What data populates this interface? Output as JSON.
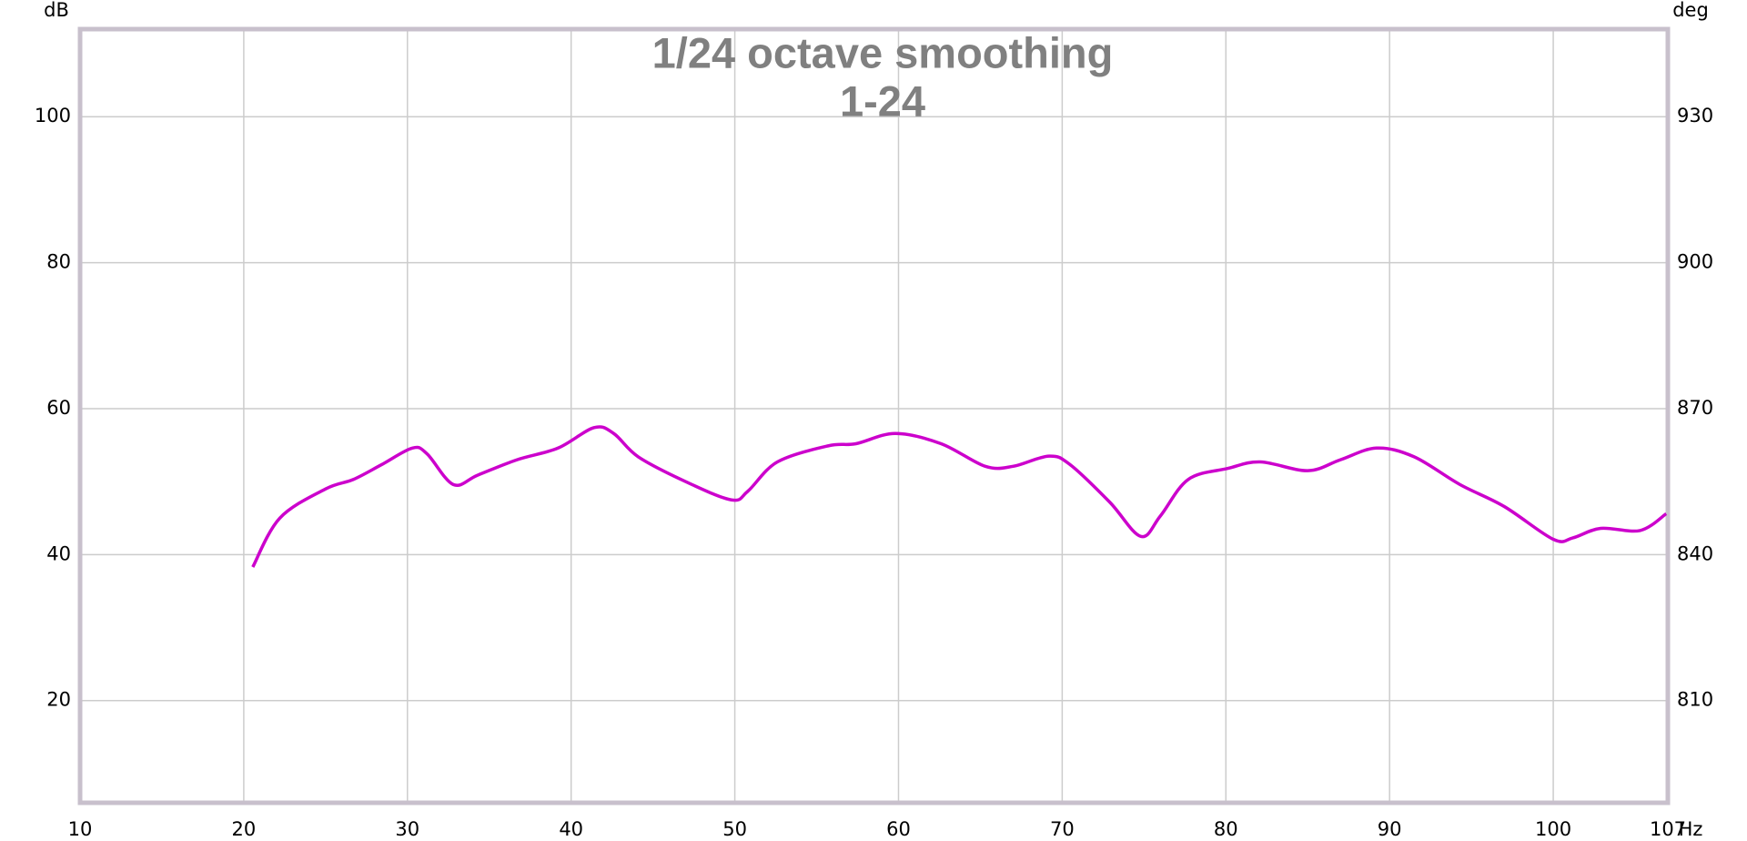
{
  "chart_data": {
    "type": "line",
    "title": "1/24 octave smoothing",
    "subtitle": "1-24",
    "x_label": "Hz",
    "y_label": "dB",
    "y2_label": "deg",
    "x": [
      20.55,
      22.2,
      25.0,
      26.7,
      28.4,
      30.3,
      31.2,
      32.8,
      34.3,
      36.7,
      39.2,
      41.4,
      42.6,
      44.1,
      47.0,
      49.8,
      50.8,
      52.6,
      55.7,
      57.4,
      59.8,
      62.6,
      65.3,
      67.0,
      69.2,
      70.5,
      72.9,
      74.8,
      76.0,
      77.7,
      80.1,
      82.1,
      85.0,
      87.0,
      89.2,
      91.5,
      94.3,
      97.0,
      100.0,
      101.2,
      102.9,
      105.3,
      106.9
    ],
    "series": [
      {
        "name": "1-24",
        "color": "#cc00cc",
        "values": [
          38.3,
          45.0,
          49.0,
          50.3,
          52.3,
          54.6,
          53.8,
          49.6,
          50.9,
          53.0,
          54.6,
          57.4,
          56.6,
          53.4,
          50.0,
          47.5,
          48.7,
          52.7,
          54.9,
          55.2,
          56.6,
          55.2,
          52.1,
          52.1,
          53.5,
          52.3,
          47.2,
          42.5,
          45.3,
          50.3,
          51.8,
          52.7,
          51.5,
          53.0,
          54.6,
          53.4,
          49.6,
          46.6,
          42.1,
          42.3,
          43.6,
          43.3,
          45.6
        ]
      }
    ],
    "xlim": [
      10,
      107
    ],
    "xticks": [
      10,
      20,
      30,
      40,
      50,
      60,
      70,
      80,
      90,
      100,
      107
    ],
    "ylim": [
      6,
      112
    ],
    "yticks": [
      20,
      40,
      60,
      80,
      100
    ],
    "y2lim": [
      789,
      948
    ],
    "y2ticks": [
      810,
      840,
      870,
      900,
      930
    ],
    "grid": true
  }
}
